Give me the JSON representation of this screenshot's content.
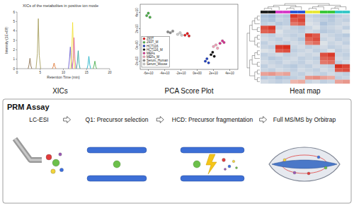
{
  "chart_data": [
    {
      "type": "line",
      "title": "XICs of the metabolites in positive ion mode",
      "x_label": "Retention Time (min)",
      "y_label": "Intensity (1E+09)",
      "caption": "XICs",
      "xlim": [
        0,
        20
      ],
      "xticks": [
        0,
        5,
        10,
        15,
        20
      ],
      "ylim": [
        0,
        6
      ],
      "yticks": [
        0,
        1,
        2,
        3,
        4,
        5,
        6
      ],
      "series": [
        {
          "color": "#a8a060",
          "x": [
            4.1,
            4.4,
            4.6,
            4.8,
            5.1
          ],
          "values": [
            0,
            1.6,
            5.3,
            1.4,
            0
          ]
        },
        {
          "color": "#8b6f4e",
          "x": [
            2.4,
            2.6,
            2.8,
            3.0,
            3.2
          ],
          "values": [
            0,
            0.4,
            1.1,
            0.3,
            0
          ]
        },
        {
          "color": "#e07b39",
          "x": [
            7.6,
            7.8,
            8.0,
            8.2,
            8.4
          ],
          "values": [
            0,
            0.2,
            0.6,
            0.2,
            0
          ]
        },
        {
          "color": "#6a5acd",
          "x": [
            11.1,
            11.3,
            11.5,
            11.7,
            11.9
          ],
          "values": [
            0,
            0.9,
            2.3,
            0.8,
            0
          ]
        },
        {
          "color": "#f2e030",
          "x": [
            11.6,
            11.8,
            12.0,
            12.2,
            12.4
          ],
          "values": [
            0,
            1.7,
            4.9,
            1.5,
            0
          ]
        },
        {
          "color": "#e060a0",
          "x": [
            11.9,
            12.1,
            12.3,
            12.5,
            12.7
          ],
          "values": [
            0,
            1.1,
            3.3,
            1.0,
            0
          ]
        },
        {
          "color": "#2aa198",
          "x": [
            12.8,
            13.0,
            13.2,
            13.4,
            13.6
          ],
          "values": [
            0,
            0.6,
            1.9,
            0.5,
            0
          ]
        },
        {
          "color": "#20b2c8",
          "x": [
            15.1,
            15.3,
            15.5,
            15.7,
            15.9
          ],
          "values": [
            0,
            0.4,
            1.3,
            0.4,
            0
          ]
        },
        {
          "color": "#4caf50",
          "x": [
            16.4,
            16.6,
            16.8,
            17.0,
            17.2
          ],
          "values": [
            0,
            0.3,
            0.8,
            0.2,
            0
          ]
        }
      ]
    },
    {
      "type": "scatter",
      "caption": "PCA Score Plot",
      "legend": "left",
      "marker": "circle",
      "xlim": [
        -70000000000.0,
        50000000000.0
      ],
      "xticks": [
        {
          "value": -60000000000.0,
          "label": "-6e+10"
        },
        {
          "value": -40000000000.0,
          "label": "-4e+10"
        },
        {
          "value": -20000000000.0,
          "label": "-2e+10"
        },
        {
          "value": 0,
          "label": "0e+00"
        },
        {
          "value": 20000000000.0,
          "label": "2e+10"
        },
        {
          "value": 40000000000.0,
          "label": "4e+10"
        }
      ],
      "ylim": [
        -30000000000.0,
        50000000000.0
      ],
      "yticks": [
        {
          "value": -20000000000.0,
          "label": "-2e+10"
        },
        {
          "value": 0,
          "label": "0e+00"
        },
        {
          "value": 20000000000.0,
          "label": "2e+10"
        },
        {
          "value": 40000000000.0,
          "label": "4e+10"
        }
      ],
      "series": [
        {
          "name": "293T",
          "color": "#e41a1c",
          "x": [
            -15000000000.0,
            -12000000000.0,
            -10000000000.0
          ],
          "values": [
            12000000000.0,
            14000000000.0,
            11000000000.0
          ]
        },
        {
          "name": "293T_M",
          "color": "#4daf4a",
          "x": [
            -62000000000.0,
            -60000000000.0,
            -58000000000.0
          ],
          "values": [
            36000000000.0,
            39000000000.0,
            34000000000.0
          ]
        },
        {
          "name": "HCT116",
          "color": "#1f3fbf",
          "x": [
            10000000000.0,
            12000000000.0,
            14000000000.0
          ],
          "values": [
            -20000000000.0,
            -17000000000.0,
            -22000000000.0
          ]
        },
        {
          "name": "HCT116_M",
          "color": "#111111",
          "x": [
            17000000000.0,
            19000000000.0,
            21000000000.0
          ],
          "values": [
            -12000000000.0,
            -9000000000.0,
            -14000000000.0
          ]
        },
        {
          "name": "MEFs",
          "color": "#d6308f",
          "x": [
            28000000000.0,
            31000000000.0,
            33000000000.0
          ],
          "values": [
            2000000000.0,
            5000000000.0,
            3000000000.0
          ]
        },
        {
          "name": "MEFs_M",
          "color": "#f4a0b8",
          "x": [
            20000000000.0,
            23000000000.0,
            25000000000.0
          ],
          "values": [
            -2000000000.0,
            0,
            -4000000000.0
          ]
        },
        {
          "name": "Serum_Human",
          "color": "#888888",
          "x": [
            -36000000000.0,
            -33000000000.0,
            -30000000000.0
          ],
          "values": [
            16000000000.0,
            15000000000.0,
            17000000000.0
          ]
        },
        {
          "name": "Serum_Mouse",
          "color": "#cccccc",
          "x": [
            -24000000000.0,
            -21000000000.0,
            -19000000000.0
          ],
          "values": [
            13000000000.0,
            15000000000.0,
            12000000000.0
          ]
        }
      ]
    },
    {
      "type": "heatmap",
      "caption": "Heat map",
      "colors": [
        "#222222",
        "#222222",
        "#d63cc8",
        "#d63cc8",
        "#2a56d6",
        "#2a56d6",
        "#e8e838",
        "#e8e838",
        "#3cc83c",
        "#3cc83c",
        "#38c8c8",
        "#38c8c8"
      ],
      "cells": [
        [
          -0.8,
          -0.9,
          -0.6,
          -0.7,
          1.8,
          1.6,
          -0.5,
          -0.6,
          -0.7,
          -0.8,
          -0.6,
          -0.5
        ],
        [
          -0.7,
          -0.8,
          -0.5,
          -0.6,
          1.5,
          1.7,
          -0.4,
          -0.5,
          -0.6,
          -0.7,
          -0.5,
          -0.6
        ],
        [
          -0.6,
          -0.5,
          -0.7,
          -0.6,
          1.2,
          1.4,
          -0.3,
          -0.4,
          -0.8,
          -0.6,
          -0.5,
          -0.4
        ],
        [
          1.6,
          1.8,
          -0.5,
          -0.4,
          -0.6,
          -0.7,
          -0.5,
          -0.3,
          -0.6,
          -0.5,
          -0.4,
          -0.6
        ],
        [
          1.4,
          1.5,
          -0.3,
          -0.5,
          -0.5,
          -0.6,
          -0.4,
          -0.5,
          -0.7,
          -0.6,
          -0.5,
          -0.3
        ],
        [
          -0.5,
          -0.6,
          -0.4,
          -0.5,
          -0.6,
          -0.5,
          1.7,
          1.5,
          -0.4,
          -0.5,
          -0.6,
          -0.7
        ],
        [
          -0.4,
          -0.5,
          -0.6,
          -0.4,
          -0.5,
          -0.7,
          1.4,
          1.6,
          -0.5,
          -0.4,
          -0.6,
          -0.5
        ],
        [
          -0.6,
          -0.4,
          -0.5,
          -0.6,
          -0.4,
          -0.5,
          1.1,
          1.3,
          -0.3,
          -0.5,
          -0.4,
          -0.6
        ],
        [
          -0.5,
          -0.6,
          1.8,
          1.9,
          -0.5,
          -0.4,
          -0.6,
          -0.5,
          -0.4,
          -0.6,
          -0.5,
          -0.4
        ],
        [
          -0.3,
          -0.4,
          1.5,
          1.6,
          -0.6,
          -0.5,
          -0.4,
          -0.6,
          -0.5,
          -0.3,
          -0.6,
          -0.5
        ],
        [
          -0.6,
          -0.5,
          -0.4,
          -0.6,
          -0.5,
          -0.4,
          -0.5,
          -0.4,
          1.6,
          1.8,
          -0.5,
          -0.6
        ],
        [
          -0.5,
          -0.7,
          -0.6,
          -0.5,
          -0.4,
          -0.6,
          -0.5,
          -0.6,
          1.4,
          1.5,
          -0.4,
          -0.5
        ],
        [
          -0.4,
          -0.5,
          -0.6,
          -0.4,
          -0.5,
          -0.6,
          -0.4,
          -0.5,
          1.2,
          1.3,
          -0.6,
          -0.4
        ],
        [
          -0.6,
          -0.4,
          -0.5,
          -0.6,
          -0.7,
          -0.5,
          -0.6,
          -0.4,
          -0.5,
          -0.6,
          1.9,
          1.7
        ],
        [
          -0.5,
          -0.6,
          -0.4,
          -0.5,
          -0.6,
          -0.4,
          -0.5,
          -0.6,
          -0.4,
          -0.5,
          1.5,
          1.6
        ],
        [
          0.8,
          0.9,
          0.7,
          0.8,
          -0.5,
          -0.6,
          -0.4,
          -0.5,
          -0.6,
          -0.4,
          -0.5,
          -0.6
        ],
        [
          -0.7,
          -0.6,
          -0.8,
          -0.7,
          -0.6,
          -0.5,
          0.9,
          1.0,
          0.8,
          0.7,
          -0.6,
          -0.5
        ],
        [
          -0.4,
          -0.5,
          -0.6,
          -0.5,
          0.6,
          0.7,
          -0.5,
          -0.4,
          -0.6,
          -0.5,
          0.8,
          0.9
        ]
      ]
    }
  ],
  "prm": {
    "title": "PRM Assay",
    "steps": [
      "LC-ESI",
      "Q1: Precursor selection",
      "HCD: Precursor fragmentation",
      "Full MS/MS by Orbitrap"
    ]
  }
}
